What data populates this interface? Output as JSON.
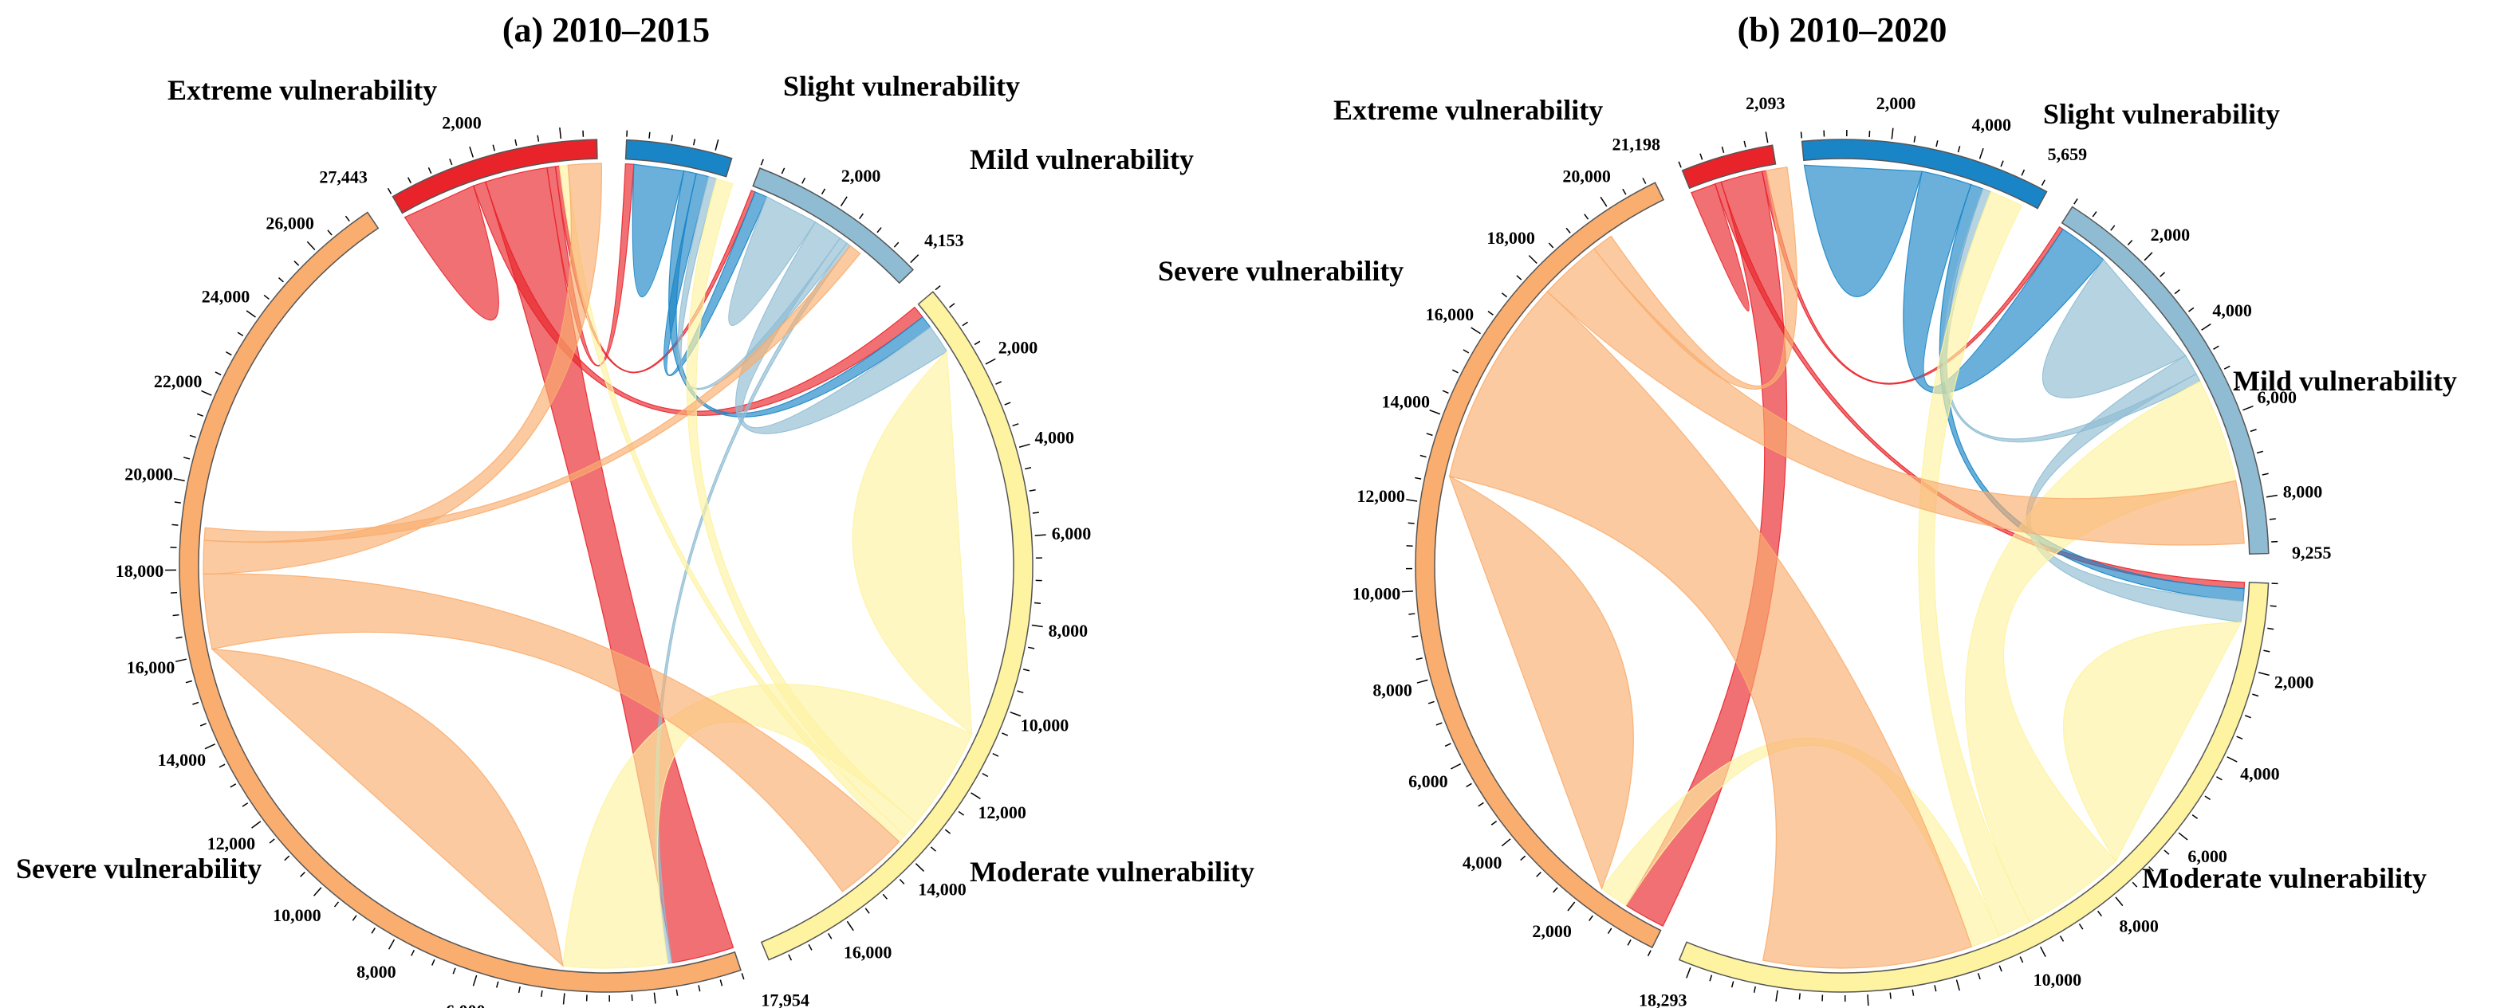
{
  "chart_data": [
    {
      "type": "chord",
      "title": "(a) 2010–2015",
      "units": "area",
      "categories": [
        {
          "id": "extreme",
          "label": "Extreme vulnerability",
          "total": 4800,
          "total_label": "",
          "color": "#e8232a"
        },
        {
          "id": "slight",
          "label": "Slight vulnerability",
          "total": 2400,
          "total_label": "",
          "color": "#1a85c6"
        },
        {
          "id": "mild",
          "label": "Mild vulnerability",
          "total": 4153,
          "total_label": "4,153",
          "color": "#8fbcd3"
        },
        {
          "id": "moderate",
          "label": "Moderate vulnerability",
          "total": 17954,
          "total_label": "17,954",
          "color": "#fdf3a1"
        },
        {
          "id": "severe",
          "label": "Severe vulnerability",
          "total": 27443,
          "total_label": "27,443",
          "color": "#f9ad6e"
        }
      ],
      "flows": [
        {
          "from": "extreme",
          "to": "extreme",
          "value": 1800
        },
        {
          "from": "extreme",
          "to": "moderate",
          "value": 300
        },
        {
          "from": "extreme",
          "to": "severe",
          "value": 1500
        },
        {
          "from": "extreme",
          "to": "slight",
          "value": 200
        },
        {
          "from": "extreme",
          "to": "mild",
          "value": 100
        },
        {
          "from": "slight",
          "to": "slight",
          "value": 1200
        },
        {
          "from": "slight",
          "to": "moderate",
          "value": 300
        },
        {
          "from": "slight",
          "to": "mild",
          "value": 300
        },
        {
          "from": "mild",
          "to": "mild",
          "value": 1300
        },
        {
          "from": "mild",
          "to": "moderate",
          "value": 700
        },
        {
          "from": "mild",
          "to": "slight",
          "value": 200
        },
        {
          "from": "mild",
          "to": "severe",
          "value": 100
        },
        {
          "from": "moderate",
          "to": "moderate",
          "value": 9500
        },
        {
          "from": "moderate",
          "to": "severe",
          "value": 2500
        },
        {
          "from": "moderate",
          "to": "slight",
          "value": 400
        },
        {
          "from": "moderate",
          "to": "extreme",
          "value": 200
        },
        {
          "from": "severe",
          "to": "severe",
          "value": 12000
        },
        {
          "from": "severe",
          "to": "moderate",
          "value": 1800
        },
        {
          "from": "severe",
          "to": "extreme",
          "value": 800
        },
        {
          "from": "severe",
          "to": "mild",
          "value": 300
        }
      ]
    },
    {
      "type": "chord",
      "title": "(b) 2010–2020",
      "units": "area",
      "categories": [
        {
          "id": "extreme",
          "label": "Extreme vulnerability",
          "total": 2093,
          "total_label": "2,093",
          "color": "#e8232a"
        },
        {
          "id": "slight",
          "label": "Slight vulnerability",
          "total": 5659,
          "total_label": "5,659",
          "color": "#1a85c6"
        },
        {
          "id": "mild",
          "label": "Mild vulnerability",
          "total": 9255,
          "total_label": "9,255",
          "color": "#8fbcd3"
        },
        {
          "id": "moderate",
          "label": "Moderate vulnerability",
          "total": 18293,
          "total_label": "18,293",
          "color": "#fdf3a1"
        },
        {
          "id": "severe",
          "label": "Severe vulnerability",
          "total": 21198,
          "total_label": "21,198",
          "color": "#f9ad6e"
        }
      ],
      "flows": [
        {
          "from": "extreme",
          "to": "extreme",
          "value": 600
        },
        {
          "from": "extreme",
          "to": "moderate",
          "value": 150
        },
        {
          "from": "extreme",
          "to": "severe",
          "value": 1000
        },
        {
          "from": "extreme",
          "to": "mild",
          "value": 100
        },
        {
          "from": "slight",
          "to": "slight",
          "value": 2800
        },
        {
          "from": "slight",
          "to": "mild",
          "value": 1200
        },
        {
          "from": "slight",
          "to": "moderate",
          "value": 300
        },
        {
          "from": "mild",
          "to": "mild",
          "value": 3000
        },
        {
          "from": "mild",
          "to": "moderate",
          "value": 500
        },
        {
          "from": "mild",
          "to": "slight",
          "value": 200
        },
        {
          "from": "moderate",
          "to": "moderate",
          "value": 6500
        },
        {
          "from": "moderate",
          "to": "mild",
          "value": 2500
        },
        {
          "from": "moderate",
          "to": "slight",
          "value": 800
        },
        {
          "from": "moderate",
          "to": "severe",
          "value": 700
        },
        {
          "from": "severe",
          "to": "severe",
          "value": 11000
        },
        {
          "from": "severe",
          "to": "moderate",
          "value": 5000
        },
        {
          "from": "severe",
          "to": "mild",
          "value": 1500
        },
        {
          "from": "severe",
          "to": "extreme",
          "value": 500
        }
      ]
    }
  ]
}
